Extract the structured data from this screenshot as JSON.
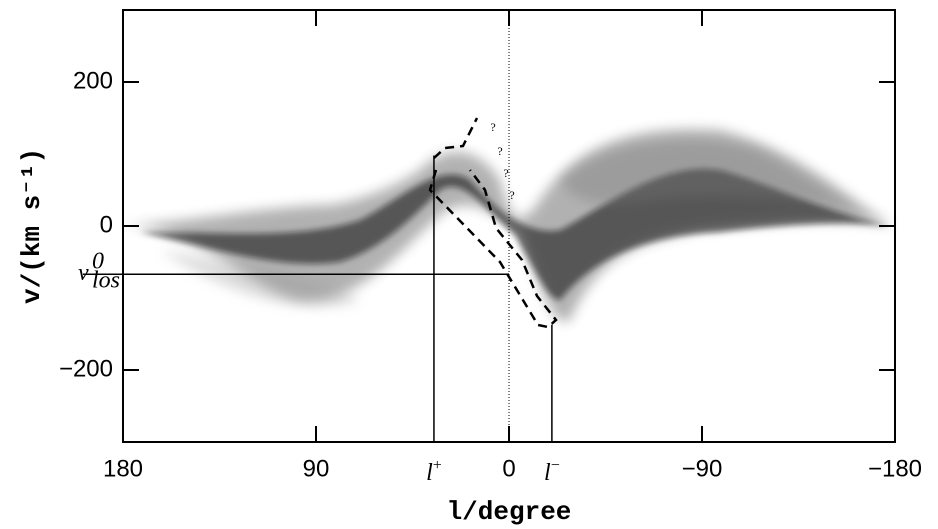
{
  "chart_data": {
    "type": "lv-diagram",
    "x_label": "l/degree",
    "y_label": "v/(km s⁻¹)",
    "xlim": [
      180,
      -180
    ],
    "xticks": [
      180,
      90,
      0,
      {
        "value": -90,
        "label": "−90"
      },
      {
        "value": -180,
        "label": "−180"
      }
    ],
    "ylim": [
      -300,
      300
    ],
    "yticks": [
      {
        "value": -200,
        "label": "−200"
      },
      0,
      200
    ],
    "vertical_markers": [
      {
        "label": "l",
        "sup": "+",
        "x": 35,
        "y_top": 98
      },
      {
        "label": "l",
        "sup": "−",
        "x": -20,
        "y_top": -137
      }
    ],
    "horizontal_marker": {
      "label": "v",
      "sup": "0",
      "sub": "los",
      "y": -67,
      "x_end": 0
    },
    "question_marks": [
      "?",
      "?",
      "?",
      "?"
    ]
  }
}
